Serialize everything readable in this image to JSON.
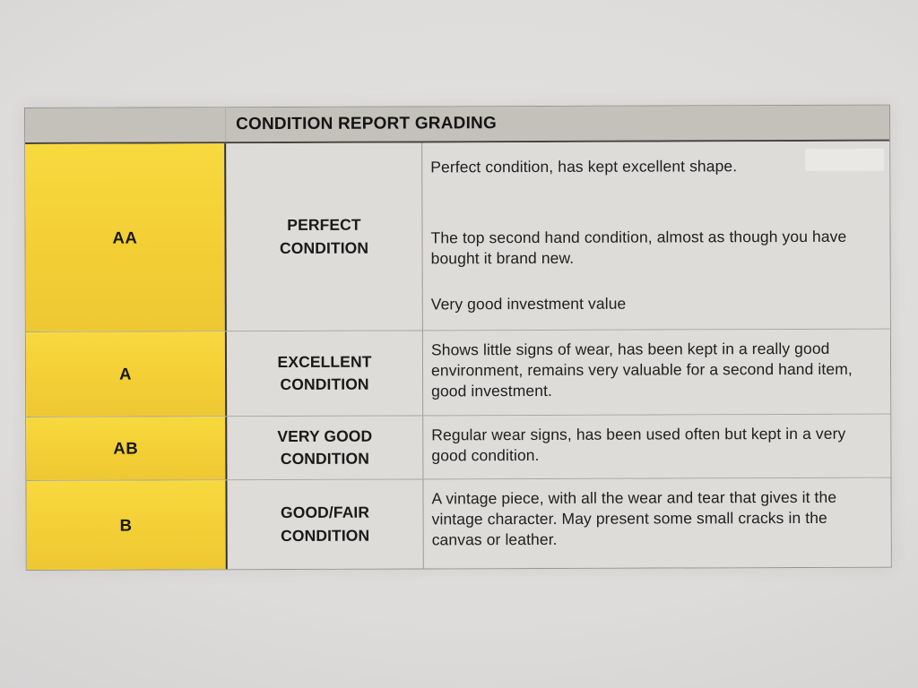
{
  "document": {
    "header": {
      "title": "CONDITION REPORT GRADING"
    },
    "rows": [
      {
        "grade": "AA",
        "condition_line1": "PERFECT",
        "condition_line2": "CONDITION",
        "desc": [
          "Perfect condition, has kept excellent shape.",
          "The top second hand condition, almost as though you have bought it brand new.",
          "Very good investment value"
        ]
      },
      {
        "grade": "A",
        "condition_line1": "EXCELLENT",
        "condition_line2": "CONDITION",
        "desc": [
          "Shows little signs of wear, has been kept in a really good environment, remains very valuable for a second hand item, good investment."
        ]
      },
      {
        "grade": "AB",
        "condition_line1": "VERY GOOD",
        "condition_line2": "CONDITION",
        "desc": [
          "Regular wear signs, has been used often but kept in a very good condition."
        ]
      },
      {
        "grade": "B",
        "condition_line1": "GOOD/FAIR",
        "condition_line2": "CONDITION",
        "desc": [
          "A vintage piece, with all the wear and tear that gives it the vintage character. May present some small cracks in the canvas or leather."
        ]
      }
    ],
    "colors": {
      "grade_column_yellow": "#f3cf35",
      "header_gray": "#c4c1bb",
      "cell_background": "#dedcd8",
      "text": "#1a1a18"
    }
  }
}
